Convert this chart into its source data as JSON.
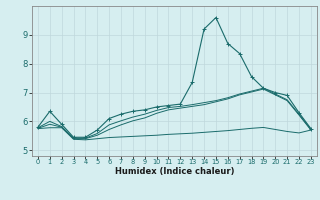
{
  "title": "",
  "xlabel": "Humidex (Indice chaleur)",
  "bg_color": "#d6eef0",
  "grid_color": "#c0d8dc",
  "line_color": "#1a6b6b",
  "xlim": [
    -0.5,
    23.5
  ],
  "ylim": [
    4.8,
    10.0
  ],
  "xticks": [
    0,
    1,
    2,
    3,
    4,
    5,
    6,
    7,
    8,
    9,
    10,
    11,
    12,
    13,
    14,
    15,
    16,
    17,
    18,
    19,
    20,
    21,
    22,
    23
  ],
  "yticks": [
    5,
    6,
    7,
    8,
    9
  ],
  "line1_x": [
    0,
    1,
    2,
    3,
    4,
    5,
    6,
    7,
    8,
    9,
    10,
    11,
    12,
    13,
    14,
    15,
    16,
    17,
    18,
    19,
    20,
    21,
    22,
    23
  ],
  "line1_y": [
    5.8,
    6.35,
    5.9,
    5.45,
    5.45,
    5.7,
    6.1,
    6.25,
    6.35,
    6.4,
    6.5,
    6.55,
    6.6,
    7.35,
    9.2,
    9.6,
    8.7,
    8.35,
    7.55,
    7.15,
    7.0,
    6.9,
    6.3,
    5.75
  ],
  "line2_x": [
    0,
    1,
    2,
    3,
    4,
    5,
    6,
    7,
    8,
    9,
    10,
    11,
    12,
    13,
    14,
    15,
    16,
    17,
    18,
    19,
    20,
    21,
    22,
    23
  ],
  "line2_y": [
    5.78,
    6.0,
    5.82,
    5.42,
    5.42,
    5.58,
    5.88,
    6.02,
    6.15,
    6.25,
    6.38,
    6.48,
    6.52,
    6.58,
    6.65,
    6.72,
    6.82,
    6.95,
    7.05,
    7.15,
    6.95,
    6.75,
    6.25,
    5.72
  ],
  "line3_x": [
    0,
    1,
    2,
    3,
    4,
    5,
    6,
    7,
    8,
    9,
    10,
    11,
    12,
    13,
    14,
    15,
    16,
    17,
    18,
    19,
    20,
    21,
    22,
    23
  ],
  "line3_y": [
    5.76,
    5.9,
    5.8,
    5.4,
    5.4,
    5.52,
    5.72,
    5.88,
    6.02,
    6.12,
    6.28,
    6.4,
    6.46,
    6.52,
    6.58,
    6.68,
    6.78,
    6.92,
    7.02,
    7.12,
    6.92,
    6.72,
    6.22,
    5.7
  ],
  "line4_x": [
    0,
    1,
    2,
    3,
    4,
    5,
    6,
    7,
    8,
    9,
    10,
    11,
    12,
    13,
    14,
    15,
    16,
    17,
    18,
    19,
    20,
    21,
    22,
    23
  ],
  "line4_y": [
    5.75,
    5.78,
    5.78,
    5.38,
    5.36,
    5.4,
    5.44,
    5.46,
    5.48,
    5.5,
    5.52,
    5.55,
    5.57,
    5.59,
    5.62,
    5.65,
    5.68,
    5.72,
    5.76,
    5.79,
    5.72,
    5.65,
    5.6,
    5.7
  ]
}
